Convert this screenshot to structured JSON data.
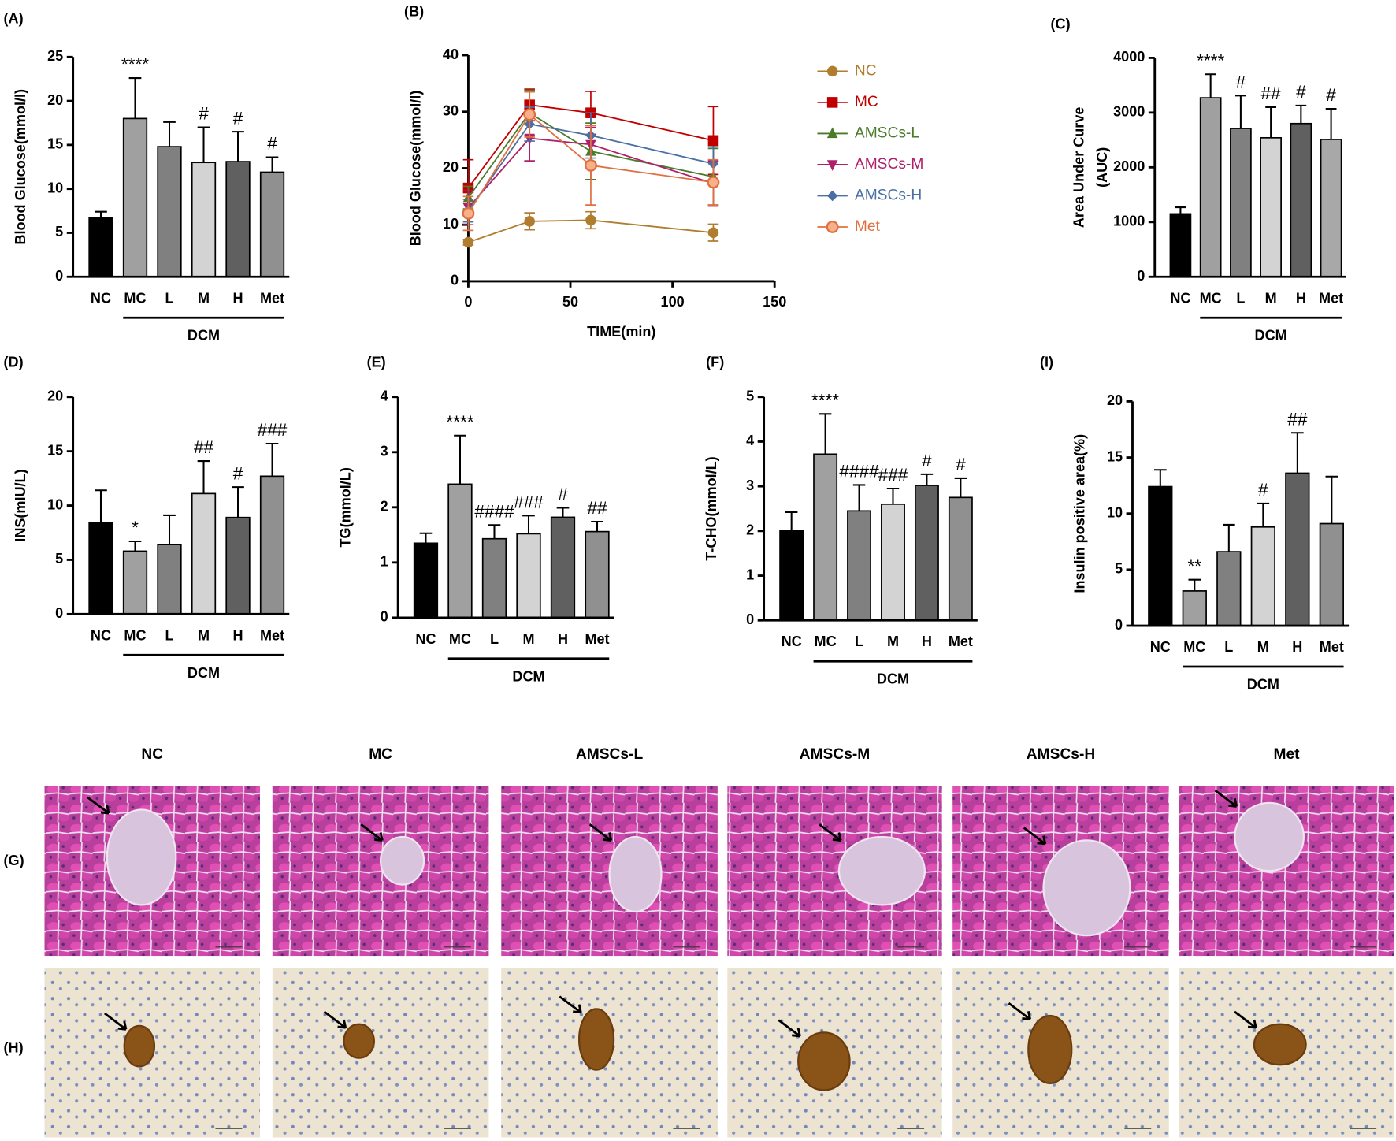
{
  "chart_data": [
    {
      "type": "bar",
      "panel_label": "(A)",
      "ylabel": [
        "Blood Glucose(mmol/l)"
      ],
      "categories": [
        "NC",
        "MC",
        "L",
        "M",
        "H",
        "Met"
      ],
      "values": [
        6.7,
        18,
        14.8,
        13,
        13.1,
        11.9
      ],
      "errors": [
        0.7,
        4.6,
        2.8,
        4,
        3.4,
        1.7
      ],
      "annotations": [
        null,
        "****",
        null,
        "#",
        "#",
        "#"
      ],
      "colors": [
        "#000000",
        "#a0a0a0",
        "#808080",
        "#d3d3d3",
        "#606060",
        "#909090"
      ],
      "group_label": "DCM",
      "ylim": [
        0,
        25
      ],
      "yticks": [
        0,
        5,
        10,
        15,
        20,
        25
      ]
    },
    {
      "type": "line",
      "panel_label": "(B)",
      "ylabel": [
        "Blood Glucose(mmol/l)"
      ],
      "xlabel": "TIME(min)",
      "x": [
        0,
        30,
        60,
        120
      ],
      "xlim": [
        0,
        150
      ],
      "xticks": [
        0,
        50,
        100,
        150
      ],
      "ylim": [
        0,
        40
      ],
      "yticks": [
        0,
        10,
        20,
        30,
        40
      ],
      "legend": "right",
      "series": [
        {
          "name": "NC",
          "color": "#b07d2e",
          "marker": "circle",
          "values": [
            6.9,
            10.6,
            10.8,
            8.6
          ],
          "errors": [
            0.5,
            1.5,
            1.5,
            1.5
          ]
        },
        {
          "name": "MC",
          "color": "#c00000",
          "marker": "square",
          "values": [
            16.5,
            31.2,
            29.8,
            24.9
          ],
          "errors": [
            5,
            2.8,
            3.8,
            6
          ]
        },
        {
          "name": "AMSCs-L",
          "color": "#4a7a2a",
          "marker": "triangle-up",
          "values": [
            14.8,
            29.8,
            23,
            18.5
          ],
          "errors": [
            2,
            4,
            5,
            5
          ]
        },
        {
          "name": "AMSCs-M",
          "color": "#b0206a",
          "marker": "triangle-down",
          "values": [
            13,
            25.3,
            24.2,
            17.3
          ],
          "errors": [
            3,
            4,
            3,
            4
          ]
        },
        {
          "name": "AMSCs-H",
          "color": "#4a6fa5",
          "marker": "diamond",
          "values": [
            12.5,
            27.8,
            25.8,
            20.8
          ],
          "errors": [
            2,
            3,
            4,
            3
          ]
        },
        {
          "name": "Met",
          "color": "#e07040",
          "marker": "open-circle",
          "values": [
            12,
            29.5,
            20.5,
            17.5
          ],
          "errors": [
            3,
            4,
            7,
            4
          ]
        }
      ]
    },
    {
      "type": "bar",
      "panel_label": "(C)",
      "ylabel": [
        "Area Under Curve",
        "(AUC)"
      ],
      "categories": [
        "NC",
        "MC",
        "L",
        "M",
        "H",
        "Met"
      ],
      "values": [
        1150,
        3270,
        2710,
        2540,
        2800,
        2510
      ],
      "errors": [
        120,
        430,
        600,
        560,
        330,
        560
      ],
      "annotations": [
        null,
        "****",
        "#",
        "##",
        "#",
        "#"
      ],
      "colors": [
        "#000000",
        "#a0a0a0",
        "#808080",
        "#d3d3d3",
        "#606060",
        "#a8a8a8"
      ],
      "group_label": "DCM",
      "ylim": [
        0,
        4000
      ],
      "yticks": [
        0,
        1000,
        2000,
        3000,
        4000
      ]
    },
    {
      "type": "bar",
      "panel_label": "(D)",
      "ylabel": [
        "INS(mIU/L)"
      ],
      "categories": [
        "NC",
        "MC",
        "L",
        "M",
        "H",
        "Met"
      ],
      "values": [
        8.4,
        5.8,
        6.4,
        11.1,
        8.9,
        12.7
      ],
      "errors": [
        3,
        0.9,
        2.7,
        3,
        2.8,
        3
      ],
      "annotations": [
        null,
        "*",
        null,
        "##",
        "#",
        "###"
      ],
      "colors": [
        "#000000",
        "#a0a0a0",
        "#808080",
        "#d3d3d3",
        "#606060",
        "#909090"
      ],
      "group_label": "DCM",
      "ylim": [
        0,
        20
      ],
      "yticks": [
        0,
        5,
        10,
        15,
        20
      ]
    },
    {
      "type": "bar",
      "panel_label": "(E)",
      "ylabel": [
        "TG(mmol/L)"
      ],
      "categories": [
        "NC",
        "MC",
        "L",
        "M",
        "H",
        "Met"
      ],
      "values": [
        1.35,
        2.42,
        1.43,
        1.52,
        1.82,
        1.56
      ],
      "errors": [
        0.18,
        0.88,
        0.25,
        0.33,
        0.17,
        0.18
      ],
      "annotations": [
        null,
        "****",
        "####",
        "###",
        "#",
        "##"
      ],
      "colors": [
        "#000000",
        "#a0a0a0",
        "#808080",
        "#d3d3d3",
        "#606060",
        "#909090"
      ],
      "group_label": "DCM",
      "ylim": [
        0,
        4
      ],
      "yticks": [
        0,
        1,
        2,
        3,
        4
      ]
    },
    {
      "type": "bar",
      "panel_label": "(F)",
      "ylabel": [
        "T-CHO(mmol/L)"
      ],
      "categories": [
        "NC",
        "MC",
        "L",
        "M",
        "H",
        "Met"
      ],
      "values": [
        2.0,
        3.72,
        2.45,
        2.6,
        3.02,
        2.75
      ],
      "errors": [
        0.42,
        0.9,
        0.58,
        0.35,
        0.25,
        0.43
      ],
      "annotations": [
        null,
        "****",
        "####",
        "###",
        "#",
        "#"
      ],
      "colors": [
        "#000000",
        "#a0a0a0",
        "#808080",
        "#d3d3d3",
        "#606060",
        "#909090"
      ],
      "group_label": "DCM",
      "ylim": [
        0,
        5
      ],
      "yticks": [
        0,
        1,
        2,
        3,
        4,
        5
      ]
    },
    {
      "type": "bar",
      "panel_label": "(I)",
      "ylabel": [
        "Insulin positive area(%)"
      ],
      "categories": [
        "NC",
        "MC",
        "L",
        "M",
        "H",
        "Met"
      ],
      "values": [
        12.4,
        3.1,
        6.6,
        8.8,
        13.6,
        9.1
      ],
      "errors": [
        1.5,
        1,
        2.4,
        2.1,
        3.6,
        4.2
      ],
      "annotations": [
        null,
        "**",
        null,
        "#",
        "##",
        null
      ],
      "colors": [
        "#000000",
        "#a0a0a0",
        "#808080",
        "#d3d3d3",
        "#606060",
        "#909090"
      ],
      "group_label": "DCM",
      "ylim": [
        0,
        20
      ],
      "yticks": [
        0,
        5,
        10,
        15,
        20
      ]
    }
  ],
  "micrographs": {
    "columns": [
      "NC",
      "MC",
      "AMSCs-L",
      "AMSCs-M",
      "AMSCs-H",
      "Met"
    ],
    "rows": [
      "(G)",
      "(H)"
    ]
  }
}
